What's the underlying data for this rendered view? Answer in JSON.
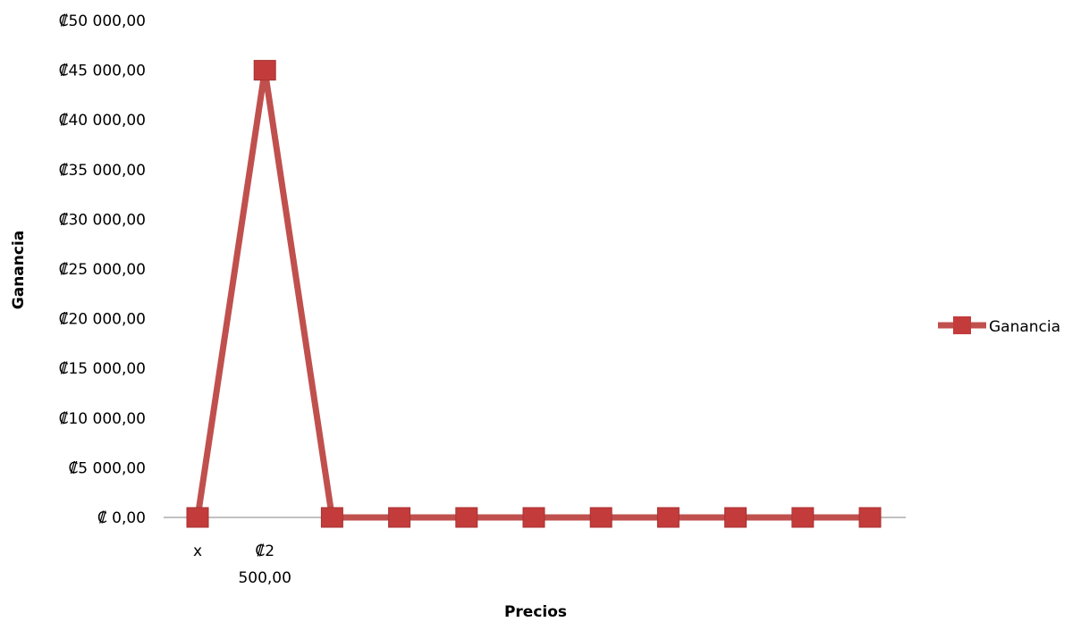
{
  "colors": {
    "series": "#c0504d",
    "series_marker": "#c33b3b",
    "axis": "#808080"
  },
  "chart_data": {
    "type": "line",
    "title": "",
    "xlabel": "Precios",
    "ylabel": "Ganancia",
    "ylim": [
      0,
      50000
    ],
    "y_ticks": [
      "₡ 0,00",
      "₡5 000,00",
      "₡10 000,00",
      "₡15 000,00",
      "₡20 000,00",
      "₡25 000,00",
      "₡30 000,00",
      "₡35 000,00",
      "₡40 000,00",
      "₡45 000,00",
      "₡50 000,00"
    ],
    "categories": [
      "x",
      "₡2 500,00",
      "",
      "",
      "",
      "",
      "",
      "",
      "",
      "",
      ""
    ],
    "grid": false,
    "legend": "right",
    "series": [
      {
        "name": "Ganancia",
        "values": [
          0,
          45000,
          0,
          0,
          0,
          0,
          0,
          0,
          0,
          0,
          0
        ]
      }
    ]
  }
}
